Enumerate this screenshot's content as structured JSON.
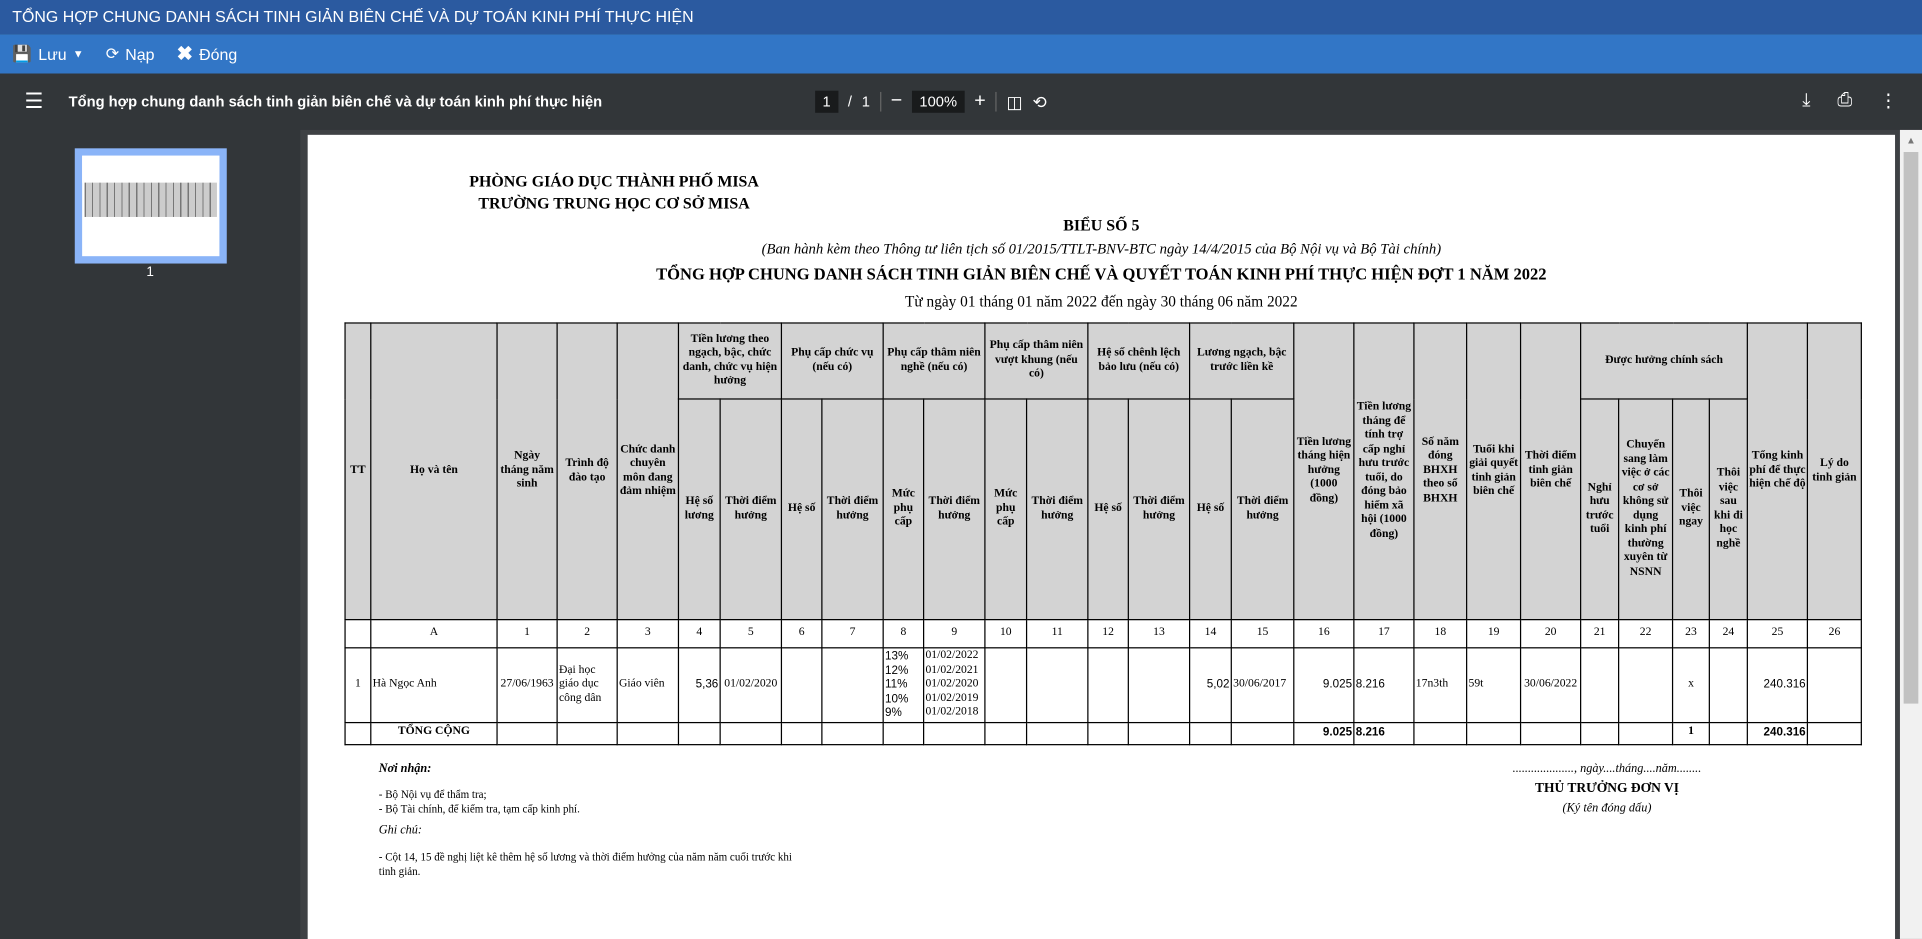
{
  "window": {
    "title": "TỔNG HỢP CHUNG DANH SÁCH TINH GIẢN BIÊN CHẾ VÀ DỰ TOÁN KINH PHÍ THỰC HIỆN"
  },
  "toolbar": {
    "save": "Lưu",
    "reload": "Nạp",
    "close": "Đóng"
  },
  "pdf": {
    "title": "Tổng hợp chung danh sách tinh giản biên chế và dự toán kinh phí thực hiện",
    "page": "1",
    "total": "1",
    "zoom": "100%",
    "thumb_label": "1"
  },
  "doc": {
    "org1": "PHÒNG GIÁO DỤC THÀNH PHỐ MISA",
    "org2": "TRƯỜNG TRUNG HỌC CƠ SỞ MISA",
    "form": "BIỂU SỐ 5",
    "basis": "(Ban hành kèm theo Thông tư liên tịch số 01/2015/TTLT-BNV-BTC ngày 14/4/2015 của Bộ Nội vụ và Bộ Tài chính)",
    "title": "TỔNG HỢP CHUNG DANH SÁCH TINH GIẢN BIÊN CHẾ VÀ QUYẾT TOÁN KINH PHÍ THỰC HIỆN ĐỢT 1 NĂM 2022",
    "period": "Từ ngày 01 tháng 01 năm 2022 đến ngày 30 tháng 06 năm 2022",
    "header1": [
      "TT",
      "Họ và tên",
      "Ngày tháng năm sinh",
      "Trình độ đào tạo",
      "Chức danh chuyên môn đang đảm nhiệm",
      "Tiền lương theo ngạch, bậc, chức danh, chức vụ hiện hưởng",
      "Phụ cấp chức vụ (nếu có)",
      "Phụ cấp thâm niên nghề (nếu có)",
      "Phụ cấp thâm niên vượt khung (nếu có)",
      "Hệ số chênh lệch bảo lưu (nếu có)",
      "Lương ngạch, bậc trước liền kề",
      "Tiền lương tháng hiện hưởng (1000 đồng)",
      "Tiền lương tháng để tính trợ cấp nghỉ hưu trước tuổi, do đóng bảo hiểm xã hội (1000 đồng)",
      "Số năm đóng BHXH theo sổ BHXH",
      "Tuổi khi giải quyết tinh giản biên chế",
      "Thời điểm tinh giản biên chế",
      "Được hưởng chính sách",
      "Tổng kinh phí để thực hiện chế độ",
      "Lý do tinh giản"
    ],
    "header2": [
      "Hệ số lương",
      "Thời điểm hưởng",
      "Hệ số",
      "Thời điểm hưởng",
      "Mức phụ cấp",
      "Thời điểm hưởng",
      "Mức phụ cấp",
      "Thời điểm hưởng",
      "Hệ số",
      "Thời điểm hưởng",
      "Hệ số",
      "Thời điểm hưởng",
      "Nghỉ hưu trước tuổi",
      "Chuyển sang làm việc ở các cơ sở không sử dụng kinh phí thường xuyên từ NSNN",
      "Thôi việc ngay",
      "Thôi việc sau khi đi học nghề"
    ],
    "index_row": [
      "",
      "A",
      "1",
      "2",
      "3",
      "4",
      "5",
      "6",
      "7",
      "8",
      "9",
      "10",
      "11",
      "12",
      "13",
      "14",
      "15",
      "16",
      "17",
      "18",
      "19",
      "20",
      "21",
      "22",
      "23",
      "24",
      "25",
      "26"
    ],
    "rows": [
      [
        "1",
        "Hà Ngọc Anh",
        "27/06/1963",
        "Đại học giáo dục công dân",
        "Giáo viên",
        "5,36",
        "01/02/2020",
        "",
        "",
        "13%\n12%\n11%\n10%\n9%",
        "01/02/2022\n01/02/2021\n01/02/2020\n01/02/2019\n01/02/2018",
        "",
        "",
        "",
        "",
        "5,02",
        "30/06/2017",
        "9.025",
        "8.216",
        "17n3th",
        "59t",
        "30/06/2022",
        "",
        "",
        "x",
        "",
        "240.316",
        ""
      ]
    ],
    "total_row": [
      "",
      "TỔNG CỘNG",
      "",
      "",
      "",
      "",
      "",
      "",
      "",
      "",
      "",
      "",
      "",
      "",
      "",
      "",
      "",
      "9.025",
      "8.216",
      "",
      "",
      "",
      "",
      "",
      "1",
      "",
      "240.316",
      ""
    ],
    "recipients_title": "Nơi nhận:",
    "recipients": [
      "- Bộ Nội vụ để thẩm tra;",
      "- Bộ Tài chính, để kiểm tra, tạm cấp kinh phí."
    ],
    "note_title": "Ghi chú:",
    "note": "- Cột 14, 15 đề nghị liệt kê thêm hệ số lương và thời điểm hưởng của năm năm cuối trước khi tinh giản.",
    "date_line": "...................., ngày....tháng....năm........",
    "signer": "THỦ TRƯỞNG ĐƠN VỊ",
    "sign_note": "(Ký tên đóng dấu)"
  },
  "colors": {
    "titlebar": "#2b5aa0",
    "toolbar": "#3276c6",
    "pdfbar": "#323639",
    "header_cell": "#d3d3d3"
  }
}
